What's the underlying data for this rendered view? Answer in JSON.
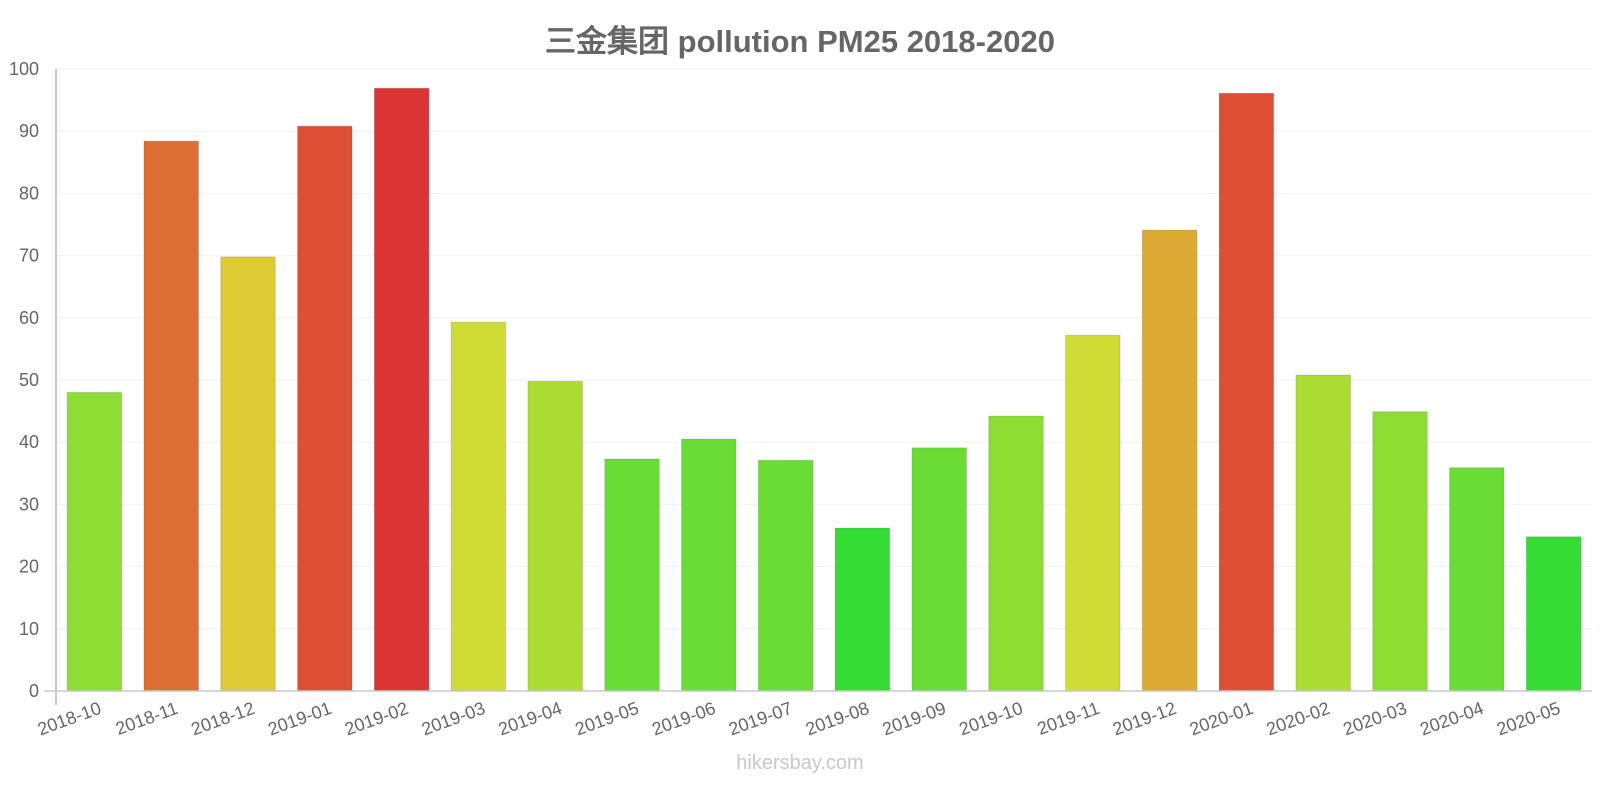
{
  "title": "三金集团 pollution PM25 2018-2020",
  "watermark": "hikersbay.com",
  "chart_data": {
    "type": "bar",
    "title": "三金集团 pollution PM25 2018-2020",
    "xlabel": "",
    "ylabel": "",
    "ylim": [
      0,
      100
    ],
    "yticks": [
      0,
      10,
      20,
      30,
      40,
      50,
      60,
      70,
      80,
      90,
      100
    ],
    "grid": true,
    "legend": null,
    "categories": [
      "2018-10",
      "2018-11",
      "2018-12",
      "2019-01",
      "2019-02",
      "2019-03",
      "2019-04",
      "2019-05",
      "2019-06",
      "2019-07",
      "2019-08",
      "2019-09",
      "2019-10",
      "2019-11",
      "2019-12",
      "2020-01",
      "2020-02",
      "2020-03",
      "2020-04",
      "2020-05"
    ],
    "values": [
      48,
      88.4,
      69.8,
      90.8,
      96.9,
      59.3,
      49.8,
      37.3,
      40.5,
      37.1,
      26.2,
      39.1,
      44.2,
      57.2,
      74.1,
      96.1,
      50.8,
      44.9,
      35.9,
      24.8
    ],
    "colors": [
      "#8ddd35",
      "#dd6f35",
      "#dccb34",
      "#dd5035",
      "#da3435",
      "#cfdc35",
      "#addd35",
      "#6bdc35",
      "#6bdc35",
      "#6bdc35",
      "#34dc35",
      "#6bdc35",
      "#8ddd35",
      "#cfdc35",
      "#dca935",
      "#dd5035",
      "#addd35",
      "#8ddd35",
      "#6bdc35",
      "#34dc35"
    ]
  }
}
